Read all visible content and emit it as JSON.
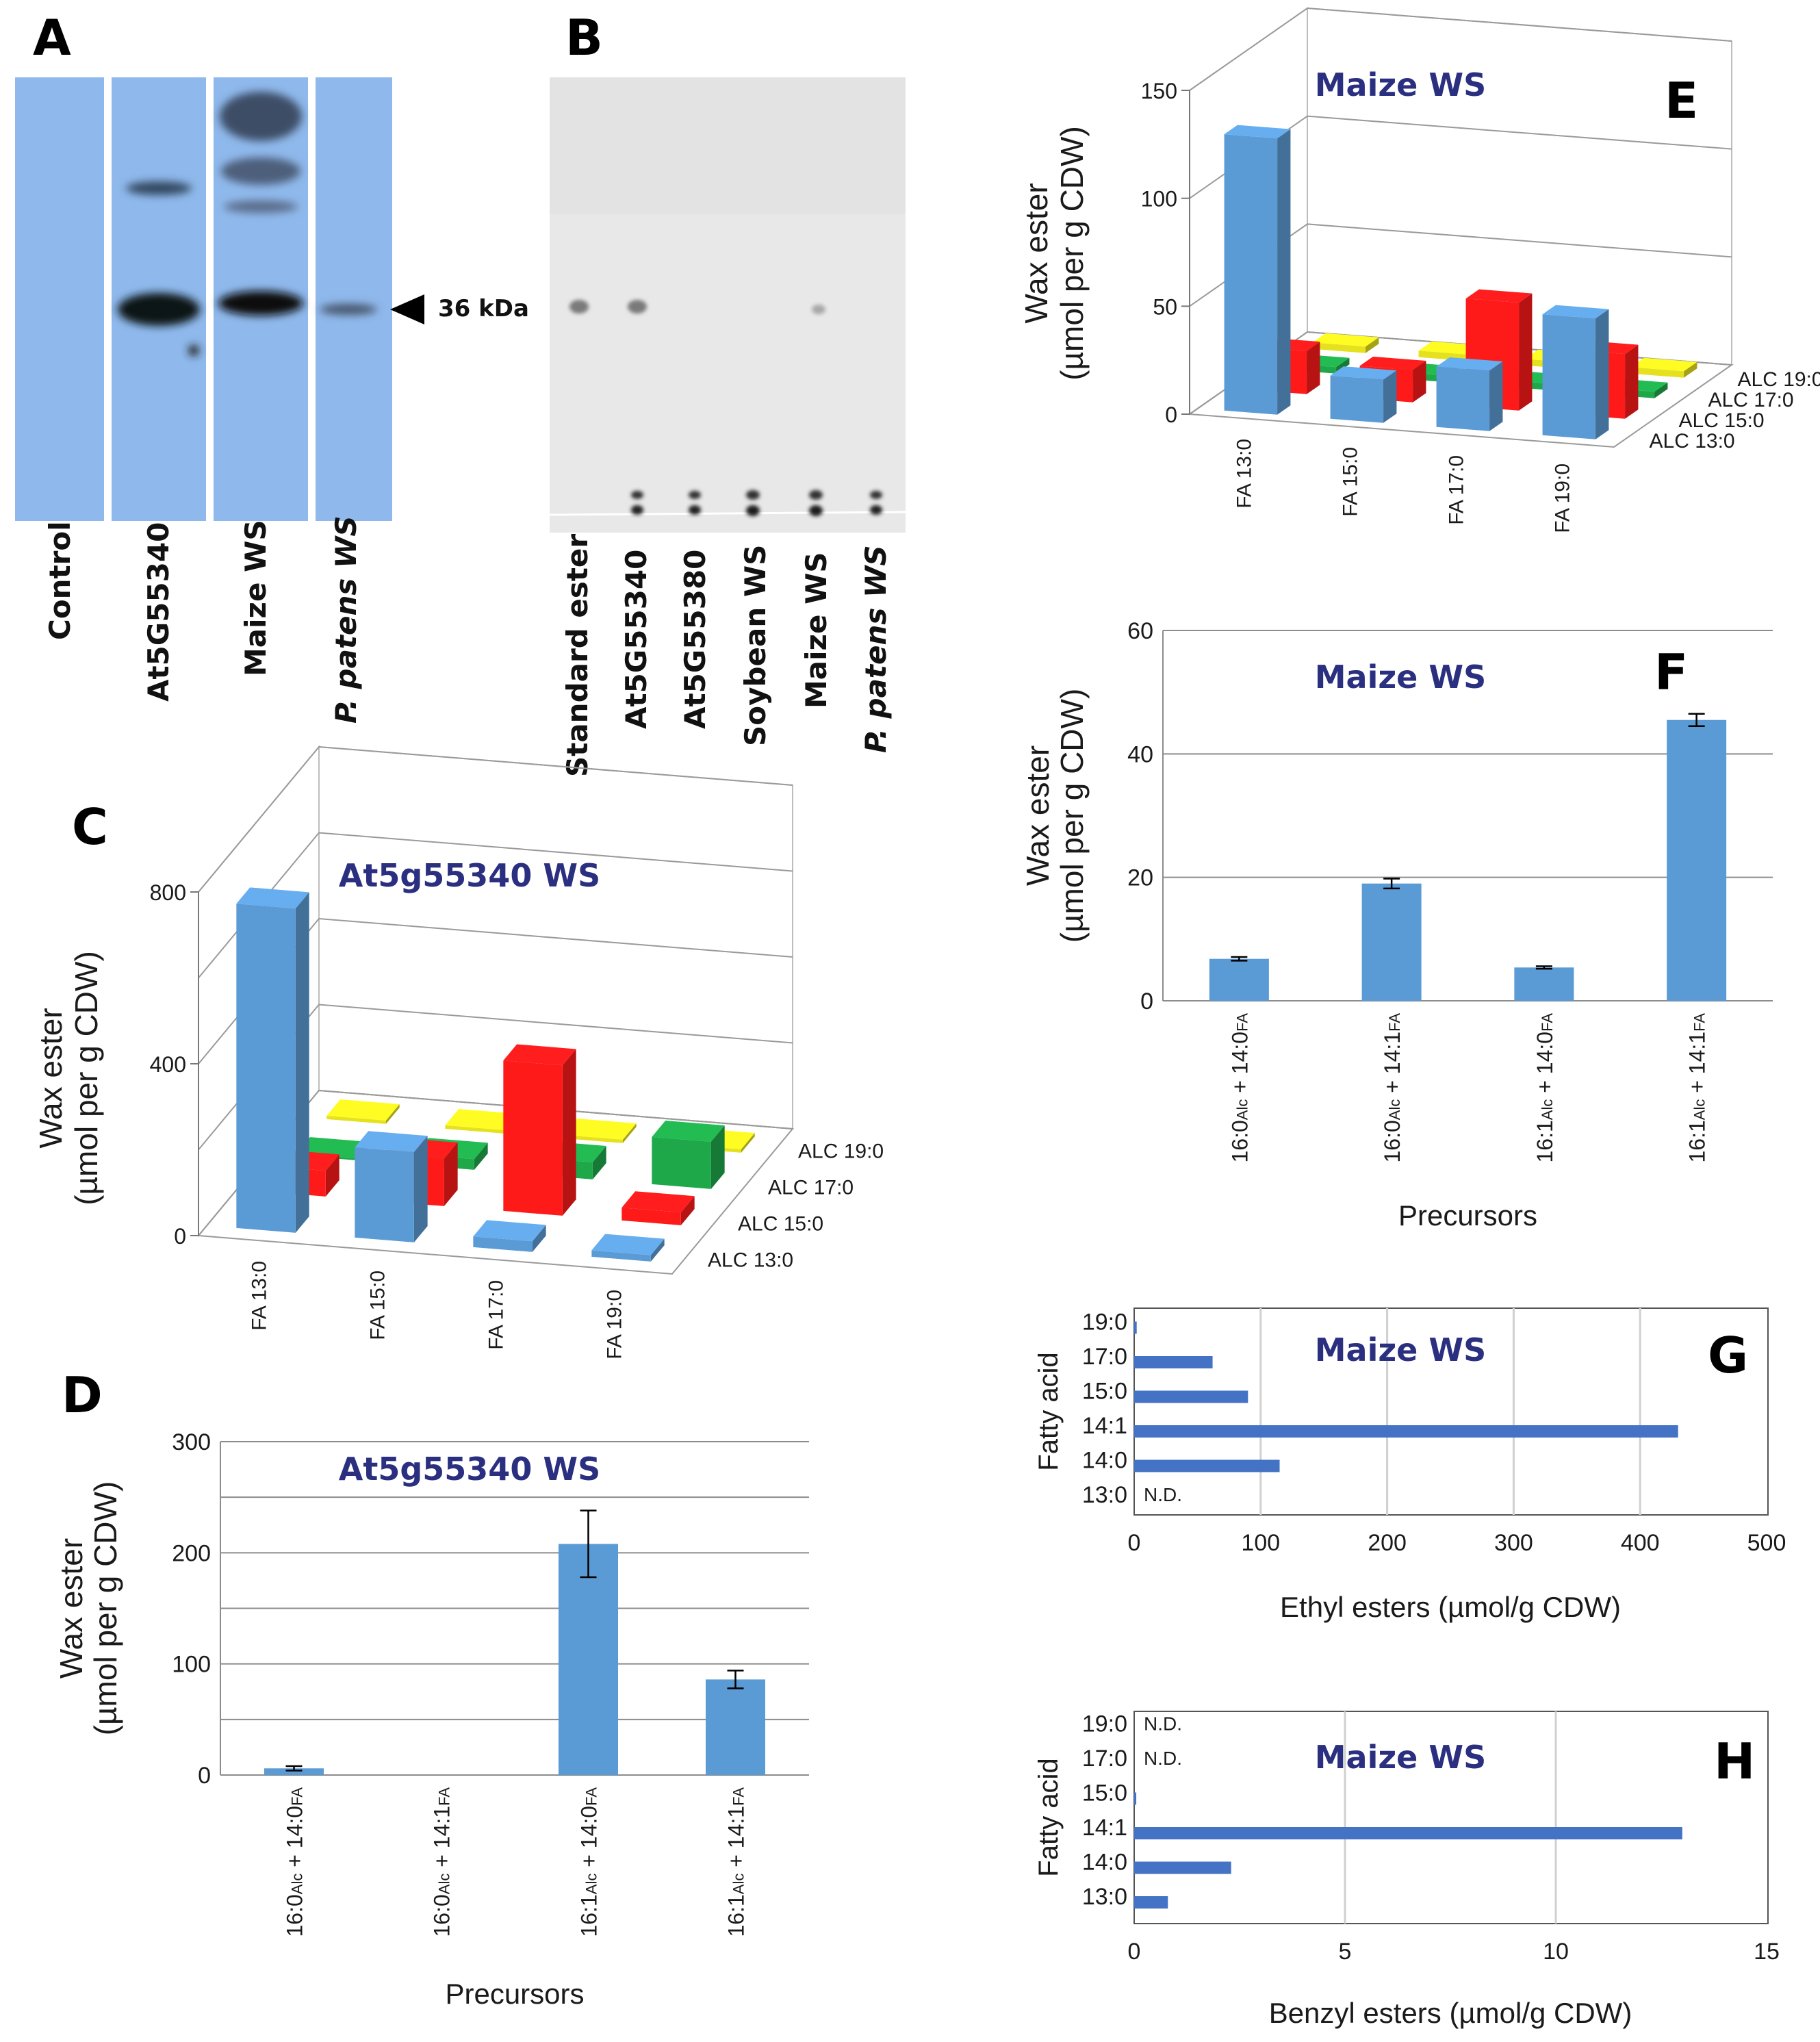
{
  "panels": {
    "A": {
      "letter": "A",
      "lanes": [
        "Control",
        "At5G55340",
        "Maize WS",
        "P. patens WS"
      ],
      "marker_label": "36 kDa",
      "colors": {
        "membrane": "#8fb9ec",
        "band": "#101418"
      }
    },
    "B": {
      "letter": "B",
      "lanes": [
        "Standard ester",
        "At5G55340",
        "At5G55380",
        "Soybean WS",
        "Maize WS",
        "P. patens WS"
      ],
      "colors": {
        "plate": "#e8e8e8",
        "spot": "#3a3a3a"
      }
    },
    "C": {
      "letter": "C"
    },
    "D": {
      "letter": "D"
    },
    "E": {
      "letter": "E"
    },
    "F": {
      "letter": "F"
    },
    "G": {
      "letter": "G"
    },
    "H": {
      "letter": "H"
    }
  },
  "colors": {
    "blue": "#5b9bd5",
    "red": "#ff1a1a",
    "green": "#1ea84a",
    "yellow": "#e5e11f",
    "hbar": "#4472c4",
    "title": "#2b2f80"
  },
  "chart_data": [
    {
      "panel": "C",
      "type": "bar3d",
      "title": "At5g55340 WS",
      "ylabel": "Wax ester",
      "ylabel2": "(µmol per g CDW)",
      "yticks": [
        0,
        400,
        800
      ],
      "ylim": [
        0,
        800
      ],
      "x": [
        "FA 13:0",
        "FA 15:0",
        "FA 17:0",
        "FA 19:0"
      ],
      "z": [
        "ALC 13:0",
        "ALC 15:0",
        "ALC 17:0",
        "ALC 19:0"
      ],
      "series": [
        {
          "name": "ALC 13:0",
          "values": [
            755,
            210,
            25,
            15
          ]
        },
        {
          "name": "ALC 15:0",
          "values": [
            60,
            110,
            350,
            30
          ]
        },
        {
          "name": "ALC 17:0",
          "values": [
            0,
            25,
            40,
            110
          ]
        },
        {
          "name": "ALC 19:0",
          "values": [
            8,
            8,
            8,
            8
          ]
        }
      ]
    },
    {
      "panel": "D",
      "type": "bar",
      "title": "At5g55340 WS",
      "ylabel": "Wax ester",
      "ylabel2": "(µmol per g CDW)",
      "xlabel": "Precursors",
      "ylim": [
        0,
        300
      ],
      "yticks": [
        0,
        100,
        200,
        300
      ],
      "categories": [
        {
          "a": "16:0",
          "as": "Alc",
          "b": " + 14:0",
          "bs": "FA"
        },
        {
          "a": "16:0",
          "as": "Alc",
          "b": " + 14:1",
          "bs": "FA"
        },
        {
          "a": "16:1",
          "as": "Alc",
          "b": " + 14:0",
          "bs": "FA"
        },
        {
          "a": "16:1",
          "as": "Alc",
          "b": " + 14:1",
          "bs": "FA"
        }
      ],
      "values": [
        6,
        0,
        208,
        86
      ],
      "errors": [
        2,
        0,
        30,
        8
      ]
    },
    {
      "panel": "E",
      "type": "bar3d",
      "title": "Maize WS",
      "ylabel": "Wax ester",
      "ylabel2": "(µmol per g CDW)",
      "yticks": [
        0,
        50,
        100,
        150
      ],
      "ylim": [
        0,
        150
      ],
      "x": [
        "FA 13:0",
        "FA 15:0",
        "FA 17:0",
        "FA 19:0"
      ],
      "z": [
        "ALC 13:0",
        "ALC 15:0",
        "ALC 17:0",
        "ALC 19:0"
      ],
      "series": [
        {
          "name": "ALC 13:0",
          "values": [
            128,
            20,
            28,
            56
          ]
        },
        {
          "name": "ALC 15:0",
          "values": [
            20,
            15,
            50,
            30
          ]
        },
        {
          "name": "ALC 17:0",
          "values": [
            3,
            3,
            3,
            3
          ]
        },
        {
          "name": "ALC 19:0",
          "values": [
            3,
            3,
            3,
            3
          ]
        }
      ]
    },
    {
      "panel": "F",
      "type": "bar",
      "title": "Maize WS",
      "ylabel": "Wax ester",
      "ylabel2": "(µmol per g CDW)",
      "xlabel": "Precursors",
      "ylim": [
        0,
        60
      ],
      "yticks": [
        0,
        20,
        40,
        60
      ],
      "categories": [
        {
          "a": "16:0",
          "as": "Alc",
          "b": " + 14:0",
          "bs": "FA"
        },
        {
          "a": "16:0",
          "as": "Alc",
          "b": " + 14:1",
          "bs": "FA"
        },
        {
          "a": "16:1",
          "as": "Alc",
          "b": " + 14:0",
          "bs": "FA"
        },
        {
          "a": "16:1",
          "as": "Alc",
          "b": " + 14:1",
          "bs": "FA"
        }
      ],
      "values": [
        6.8,
        19,
        5.4,
        45.5
      ],
      "errors": [
        0.3,
        0.8,
        0.2,
        1
      ]
    },
    {
      "panel": "G",
      "type": "hbar",
      "title": "Maize WS",
      "xlabel": "Ethyl esters (µmol/g CDW)",
      "ylabel": "Fatty acid",
      "xlim": [
        0,
        500
      ],
      "xticks": [
        0,
        100,
        200,
        300,
        400,
        500
      ],
      "categories": [
        "13:0",
        "14:0",
        "14:1",
        "15:0",
        "17:0",
        "19:0"
      ],
      "values": [
        0,
        115,
        430,
        90,
        62,
        2
      ],
      "annotations": [
        {
          "category": "13:0",
          "text": "N.D."
        }
      ]
    },
    {
      "panel": "H",
      "type": "hbar",
      "title": "Maize WS",
      "xlabel": "Benzyl esters (µmol/g CDW)",
      "ylabel": "Fatty acid",
      "xlim": [
        0,
        15
      ],
      "xticks": [
        0,
        5,
        10,
        15
      ],
      "categories": [
        "13:0",
        "14:0",
        "14:1",
        "15:0",
        "17:0",
        "19:0"
      ],
      "values": [
        0.8,
        2.3,
        13,
        0.05,
        0,
        0
      ],
      "annotations": [
        {
          "category": "19:0",
          "text": "N.D."
        },
        {
          "category": "17:0",
          "text": "N.D."
        }
      ]
    }
  ]
}
